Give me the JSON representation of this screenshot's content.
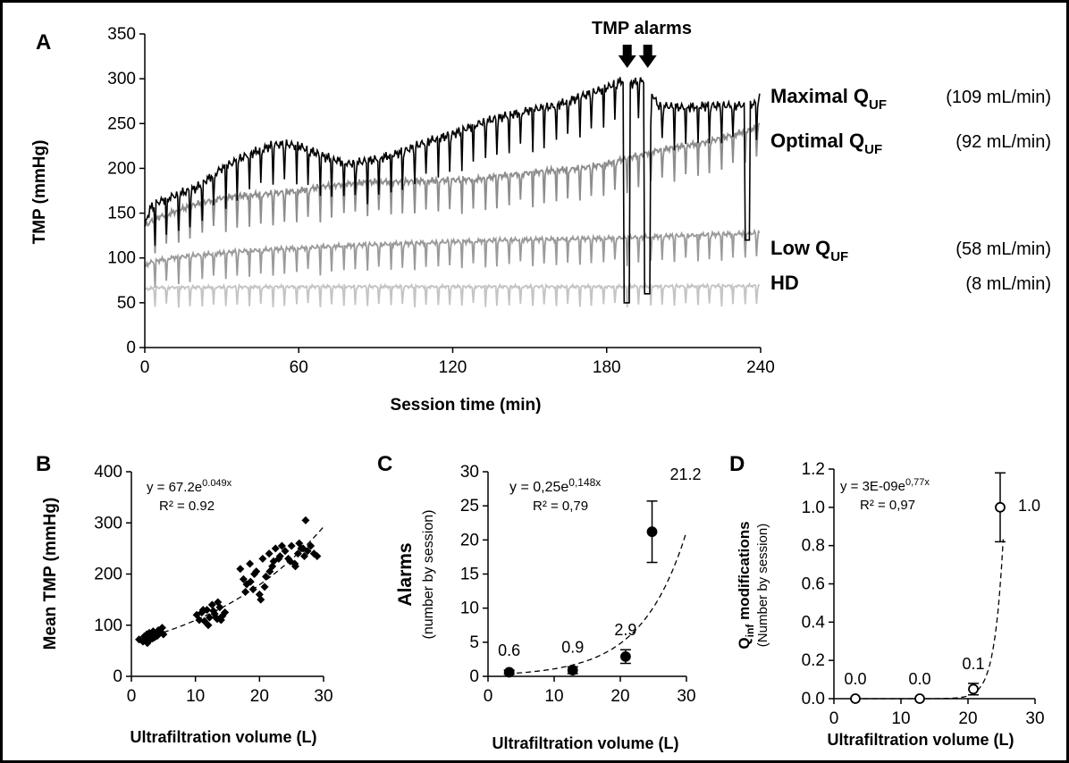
{
  "chart_data": [
    {
      "panel": "A",
      "type": "line",
      "xlabel": "Session time  (min)",
      "ylabel": "TMP (mmHg)",
      "xlim": [
        0,
        240
      ],
      "ylim": [
        0,
        350
      ],
      "xticks": [
        0,
        60,
        120,
        180,
        240
      ],
      "yticks": [
        0,
        50,
        100,
        150,
        200,
        250,
        300,
        350
      ],
      "annotation": "TMP alarms",
      "alarm_times": [
        188,
        196
      ],
      "series": [
        {
          "name": "Maximal Q",
          "sub": "UF",
          "rate": "(109 mL/min)",
          "color": "#000000",
          "x": [
            0,
            2,
            5,
            10,
            20,
            30,
            40,
            50,
            55,
            60,
            70,
            80,
            90,
            100,
            110,
            120,
            130,
            140,
            150,
            160,
            170,
            180,
            186,
            190,
            195,
            200,
            210,
            220,
            230,
            238,
            240
          ],
          "y": [
            135,
            155,
            162,
            168,
            178,
            200,
            215,
            226,
            227,
            225,
            213,
            205,
            210,
            218,
            230,
            238,
            250,
            258,
            265,
            270,
            280,
            290,
            298,
            295,
            300,
            270,
            268,
            270,
            270,
            272,
            280
          ]
        },
        {
          "name": "Optimal Q",
          "sub": "UF",
          "rate": "(92 mL/min)",
          "color": "#8c8c8c",
          "x": [
            0,
            2,
            5,
            10,
            20,
            30,
            40,
            50,
            60,
            70,
            80,
            90,
            100,
            110,
            120,
            130,
            140,
            150,
            160,
            170,
            180,
            190,
            200,
            210,
            220,
            230,
            238,
            240
          ],
          "y": [
            135,
            140,
            145,
            150,
            160,
            167,
            170,
            172,
            175,
            180,
            183,
            185,
            185,
            186,
            187,
            188,
            192,
            195,
            198,
            200,
            205,
            213,
            220,
            225,
            230,
            238,
            245,
            250
          ]
        },
        {
          "name": "Low Q",
          "sub": "UF",
          "rate": "(58 mL/min)",
          "color": "#9a9a9a",
          "x": [
            0,
            2,
            10,
            20,
            40,
            60,
            80,
            100,
            120,
            140,
            160,
            180,
            200,
            220,
            240
          ],
          "y": [
            90,
            95,
            100,
            103,
            108,
            111,
            114,
            116,
            118,
            120,
            121,
            122,
            124,
            126,
            128
          ]
        },
        {
          "name": "HD",
          "sub": "",
          "rate": "(8 mL/min)",
          "color": "#c4c4c4",
          "x": [
            0,
            5,
            60,
            120,
            180,
            240
          ],
          "y": [
            65,
            67,
            68,
            68,
            68,
            69
          ]
        }
      ]
    },
    {
      "panel": "B",
      "type": "scatter",
      "xlabel": "Ultrafiltration volume (L)",
      "ylabel": "Mean TMP (mmHg)",
      "xlim": [
        0,
        30
      ],
      "ylim": [
        0,
        400
      ],
      "xticks": [
        0,
        10,
        20,
        30
      ],
      "yticks": [
        0,
        100,
        200,
        300,
        400
      ],
      "equation": "y = 67.2e",
      "equation_exp": "0.049x",
      "r2": "R² = 0.92",
      "trend": {
        "a": 67.2,
        "b": 0.049
      },
      "x": [
        1.2,
        1.8,
        2.0,
        2.2,
        2.4,
        2.6,
        2.8,
        3.0,
        3.2,
        3.4,
        3.6,
        3.8,
        4.0,
        4.2,
        4.5,
        4.8,
        5.0,
        2.5,
        3.3,
        4.1,
        10.2,
        10.6,
        11.0,
        11.4,
        11.8,
        12.2,
        12.6,
        13.0,
        13.4,
        13.8,
        14.2,
        14.6,
        12.0,
        13.5,
        11.2,
        14.0,
        12.8,
        13.2,
        17.0,
        17.5,
        18.0,
        18.5,
        19.0,
        19.5,
        20.0,
        20.5,
        21.0,
        21.5,
        22.0,
        22.5,
        23.0,
        23.5,
        17.8,
        19.2,
        20.8,
        22.2,
        18.6,
        21.6,
        23.2,
        20.2,
        24.0,
        24.5,
        25.0,
        25.5,
        26.0,
        26.5,
        27.0,
        27.5,
        28.0,
        28.5,
        29.0,
        24.8,
        26.2,
        27.2,
        25.6,
        26.8
      ],
      "y": [
        72,
        68,
        78,
        70,
        82,
        75,
        85,
        73,
        80,
        88,
        76,
        84,
        79,
        90,
        86,
        95,
        82,
        65,
        74,
        80,
        120,
        110,
        125,
        108,
        130,
        115,
        140,
        122,
        112,
        135,
        118,
        125,
        100,
        145,
        130,
        110,
        128,
        115,
        210,
        190,
        180,
        220,
        170,
        205,
        160,
        230,
        195,
        240,
        215,
        250,
        230,
        255,
        165,
        200,
        175,
        225,
        185,
        205,
        235,
        150,
        245,
        230,
        255,
        220,
        240,
        250,
        235,
        245,
        255,
        240,
        235,
        225,
        260,
        305,
        215,
        250
      ]
    },
    {
      "panel": "C",
      "type": "scatter",
      "xlabel": "Ultrafiltration volume (L)",
      "ylabel": "Alarms",
      "ylabel_sub": "(number by session)",
      "xlim": [
        0,
        30
      ],
      "ylim": [
        0,
        30
      ],
      "xticks": [
        0,
        10,
        20,
        30
      ],
      "yticks": [
        0,
        5,
        10,
        15,
        20,
        25,
        30
      ],
      "equation": "y = 0,25e",
      "equation_exp": "0,148x",
      "r2": "R² = 0,79",
      "trend": {
        "a": 0.25,
        "b": 0.148
      },
      "points": [
        {
          "x": 3.2,
          "y": 0.6,
          "err": 0.3,
          "label": "0.6"
        },
        {
          "x": 12.8,
          "y": 0.9,
          "err": 0.5,
          "label": "0.9"
        },
        {
          "x": 20.8,
          "y": 2.9,
          "err": 1.0,
          "label": "2.9"
        },
        {
          "x": 24.8,
          "y": 21.2,
          "err": 4.5,
          "label": "21.2"
        }
      ]
    },
    {
      "panel": "D",
      "type": "scatter",
      "xlabel": "Ultrafiltration volume (L)",
      "ylabel": "Q",
      "ylabel_sub_letter": "inf",
      "ylabel_rest": " modifications",
      "ylabel_sub": "(Number by session)",
      "xlim": [
        0,
        30
      ],
      "ylim": [
        0,
        1.2
      ],
      "xticks": [
        0,
        10,
        20,
        30
      ],
      "yticks": [
        "0.0",
        "0.2",
        "0.4",
        "0.6",
        "0.8",
        "1.0",
        "1.2"
      ],
      "equation": "y = 3E-09e",
      "equation_exp": "0,77x",
      "r2": "R² = 0,97",
      "trend": {
        "a": 3e-09,
        "b": 0.77
      },
      "points": [
        {
          "x": 3.2,
          "y": 0.0,
          "err": 0.0,
          "label": "0.0"
        },
        {
          "x": 12.8,
          "y": 0.0,
          "err": 0.0,
          "label": "0.0"
        },
        {
          "x": 20.8,
          "y": 0.05,
          "err": 0.03,
          "label": "0.1"
        },
        {
          "x": 24.8,
          "y": 1.0,
          "err": 0.18,
          "label": "1.0"
        }
      ]
    }
  ]
}
